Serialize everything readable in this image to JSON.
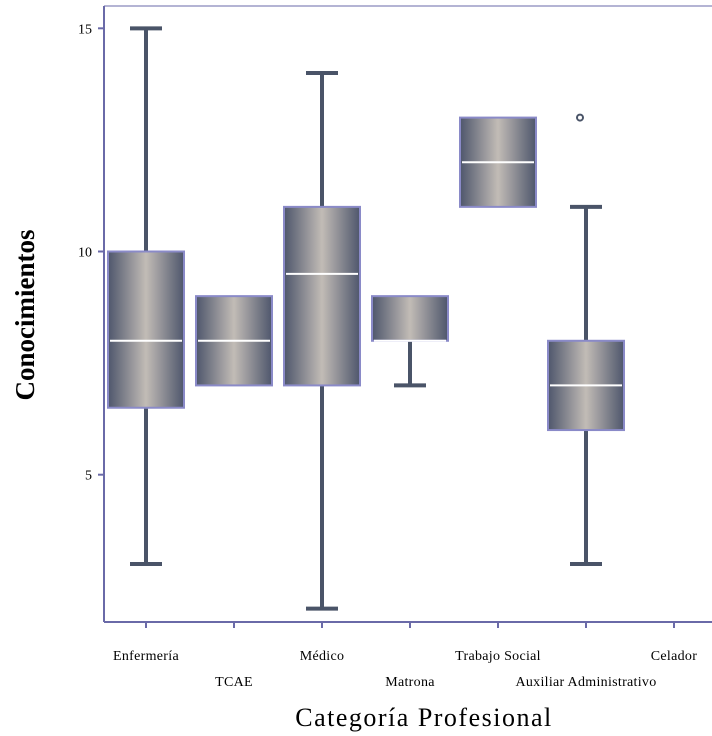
{
  "chart_data": {
    "type": "box",
    "xlabel": "Categoría Profesional",
    "ylabel": "Conocimientos",
    "ylim": [
      1.7,
      15.5
    ],
    "yticks": [
      5,
      10,
      15
    ],
    "grid": false,
    "colors": {
      "box_edge": "#8a8ac8",
      "box_dark": "#4e566c",
      "box_light": "#c2bcb6",
      "whisker": "#4a5468",
      "median": "#ffffff",
      "axis": "#6a6aa8"
    },
    "categories": [
      {
        "label": "Enfermería",
        "row": 0,
        "min": 3,
        "q1": 6.5,
        "median": 8,
        "q3": 10,
        "max": 15,
        "outliers": []
      },
      {
        "label": "TCAE",
        "row": 1,
        "min": 7,
        "q1": 7,
        "median": 8,
        "q3": 9,
        "max": 9,
        "outliers": []
      },
      {
        "label": "Médico",
        "row": 0,
        "min": 2,
        "q1": 7,
        "median": 9.5,
        "q3": 11,
        "max": 14,
        "outliers": []
      },
      {
        "label": "Matrona",
        "row": 1,
        "min": 7,
        "q1": 8,
        "median": 8,
        "q3": 9,
        "max": 9,
        "outliers": []
      },
      {
        "label": "Trabajo Social",
        "row": 0,
        "min": 11,
        "q1": 11,
        "median": 12,
        "q3": 13,
        "max": 13,
        "outliers": []
      },
      {
        "label": "Auxiliar Administrativo",
        "row": 1,
        "min": 3,
        "q1": 6,
        "median": 7,
        "q3": 8,
        "max": 11,
        "outliers": [
          13
        ]
      },
      {
        "label": "Celador",
        "row": 0,
        "min": null,
        "q1": null,
        "median": null,
        "q3": null,
        "max": null,
        "outliers": []
      }
    ]
  }
}
